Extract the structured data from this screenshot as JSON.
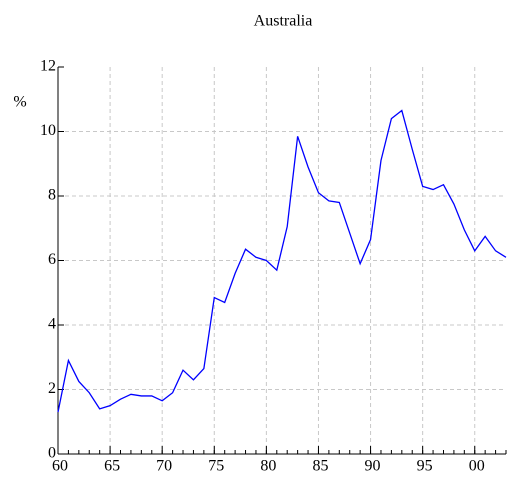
{
  "chart_data": {
    "type": "line",
    "title": "Australia",
    "y_label": "%",
    "x": [
      1960,
      1961,
      1962,
      1963,
      1964,
      1965,
      1966,
      1967,
      1968,
      1969,
      1970,
      1971,
      1972,
      1973,
      1974,
      1975,
      1976,
      1977,
      1978,
      1979,
      1980,
      1981,
      1982,
      1983,
      1984,
      1985,
      1986,
      1987,
      1988,
      1989,
      1990,
      1991,
      1992,
      1993,
      1994,
      1995,
      1996,
      1997,
      1998,
      1999,
      2000,
      2001,
      2002,
      2003
    ],
    "values": [
      1.3,
      2.9,
      2.25,
      1.9,
      1.4,
      1.5,
      1.7,
      1.85,
      1.8,
      1.8,
      1.65,
      1.9,
      2.6,
      2.3,
      2.65,
      4.85,
      4.7,
      5.6,
      6.35,
      6.1,
      6.0,
      5.7,
      7.05,
      9.85,
      8.9,
      8.1,
      7.85,
      7.8,
      6.85,
      5.9,
      6.65,
      9.1,
      10.4,
      10.65,
      9.45,
      8.3,
      8.2,
      8.35,
      7.75,
      6.95,
      6.3,
      6.75,
      6.3,
      6.1
    ],
    "color": "#0000ff",
    "xlim": [
      1960,
      2003
    ],
    "xticks": [
      {
        "value": 1960,
        "label": "60"
      },
      {
        "value": 1965,
        "label": "65"
      },
      {
        "value": 1970,
        "label": "70"
      },
      {
        "value": 1975,
        "label": "75"
      },
      {
        "value": 1980,
        "label": "80"
      },
      {
        "value": 1985,
        "label": "85"
      },
      {
        "value": 1990,
        "label": "90"
      },
      {
        "value": 1995,
        "label": "95"
      },
      {
        "value": 2000,
        "label": "00"
      }
    ],
    "ylim": [
      0,
      12
    ],
    "yticks": [
      0,
      2,
      4,
      6,
      8,
      10,
      12
    ],
    "grid": true
  }
}
